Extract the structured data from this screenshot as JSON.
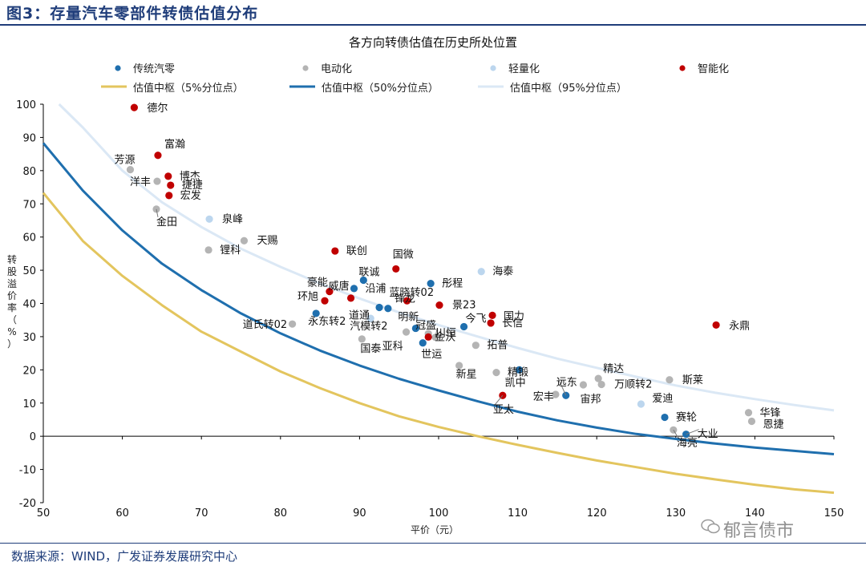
{
  "figure": {
    "title": "图3：存量汽车零部件转债估值分布",
    "source": "数据来源：WIND，广发证券发展研究中心",
    "watermark": "郁言债市"
  },
  "chart_data": {
    "type": "scatter",
    "title": "各方向转债估值在历史所处位置",
    "xlabel": "平价（元）",
    "ylabel": "转股溢价率（%）",
    "xlim": [
      50,
      150
    ],
    "ylim": [
      -20,
      100
    ],
    "xticks": [
      50,
      60,
      70,
      80,
      90,
      100,
      110,
      120,
      130,
      140,
      150
    ],
    "yticks": [
      -20,
      -10,
      0,
      10,
      20,
      30,
      40,
      50,
      60,
      70,
      80,
      90,
      100
    ],
    "grid": false,
    "legend_position": "top",
    "series": [
      {
        "name": "传统汽零",
        "color": "#1f6fae",
        "points": [
          {
            "label": "永东转2",
            "x": 84.5,
            "y": 37
          },
          {
            "label": "沿浦",
            "x": 89.3,
            "y": 44.5
          },
          {
            "label": "联诚",
            "x": 90.5,
            "y": 47
          },
          {
            "label": "道通",
            "x": 92.5,
            "y": 38.8
          },
          {
            "label": "锋龙",
            "x": 93.6,
            "y": 38.5
          },
          {
            "label": "明新",
            "x": 97.1,
            "y": 32.5
          },
          {
            "label": "世运",
            "x": 98,
            "y": 28.1
          },
          {
            "label": "彤程",
            "x": 99,
            "y": 46
          },
          {
            "label": "今飞",
            "x": 103.2,
            "y": 33
          },
          {
            "label": "凯中",
            "x": 110.2,
            "y": 20
          },
          {
            "label": "远东",
            "x": 116.1,
            "y": 12.3
          },
          {
            "label": "赛轮",
            "x": 128.6,
            "y": 5.7
          },
          {
            "label": "大业",
            "x": 131.3,
            "y": 0.6
          }
        ]
      },
      {
        "name": "电动化",
        "color": "#b4b4b4",
        "points": [
          {
            "label": "芳源",
            "x": 61,
            "y": 80.3
          },
          {
            "label": "洋丰",
            "x": 64.4,
            "y": 76.8
          },
          {
            "label": "金田",
            "x": 64.3,
            "y": 68.4
          },
          {
            "label": "锂科",
            "x": 70.9,
            "y": 56.1
          },
          {
            "label": "天赐",
            "x": 75.4,
            "y": 58.9
          },
          {
            "label": "道氏转02",
            "x": 81.5,
            "y": 33.8
          },
          {
            "label": "国泰",
            "x": 90.3,
            "y": 29.3
          },
          {
            "label": "亚科",
            "x": 95.9,
            "y": 31.4
          },
          {
            "label": "冠盛",
            "x": 98.7,
            "y": 30.9
          },
          {
            "label": "川恒",
            "x": 99.6,
            "y": 29.8
          },
          {
            "label": "新星",
            "x": 102.6,
            "y": 21.3
          },
          {
            "label": "拓普",
            "x": 104.7,
            "y": 27.4
          },
          {
            "label": "精锻",
            "x": 107.3,
            "y": 19.2
          },
          {
            "label": "宏丰",
            "x": 114.8,
            "y": 12.6
          },
          {
            "label": "宙邦",
            "x": 118.3,
            "y": 15.5
          },
          {
            "label": "精达",
            "x": 120.2,
            "y": 17.4
          },
          {
            "label": "万顺转2",
            "x": 120.6,
            "y": 15.6
          },
          {
            "label": "斯莱",
            "x": 129.2,
            "y": 17
          },
          {
            "label": "海亮",
            "x": 129.7,
            "y": 1.9
          },
          {
            "label": "华锋",
            "x": 139.2,
            "y": 7.1
          },
          {
            "label": "恩捷",
            "x": 139.6,
            "y": 4.5
          }
        ]
      },
      {
        "name": "轻量化",
        "color": "#bcd6ee",
        "points": [
          {
            "label": "泉峰",
            "x": 71,
            "y": 65.4
          },
          {
            "label": "汽模转2",
            "x": 91.4,
            "y": 35.5
          },
          {
            "label": "海泰",
            "x": 105.4,
            "y": 49.6
          },
          {
            "label": "爱迪",
            "x": 125.6,
            "y": 9.7
          }
        ]
      },
      {
        "name": "智能化",
        "color": "#c00000",
        "points": [
          {
            "label": "德尔",
            "x": 61.5,
            "y": 99
          },
          {
            "label": "富瀚",
            "x": 64.5,
            "y": 84.6
          },
          {
            "label": "博杰",
            "x": 65.8,
            "y": 78.3
          },
          {
            "label": "捷捷",
            "x": 66.1,
            "y": 75.6
          },
          {
            "label": "宏发",
            "x": 65.9,
            "y": 72.5
          },
          {
            "label": "联创",
            "x": 86.9,
            "y": 55.8
          },
          {
            "label": "豪能",
            "x": 86.2,
            "y": 43.6
          },
          {
            "label": "环旭",
            "x": 85.6,
            "y": 40.8
          },
          {
            "label": "威唐",
            "x": 88.9,
            "y": 41.6
          },
          {
            "label": "国微",
            "x": 94.6,
            "y": 50.4
          },
          {
            "label": "蓝晓转02",
            "x": 96,
            "y": 40.8
          },
          {
            "label": "景23",
            "x": 100.1,
            "y": 39.5
          },
          {
            "label": "国力",
            "x": 106.8,
            "y": 36.4
          },
          {
            "label": "长信",
            "x": 106.6,
            "y": 34.1
          },
          {
            "label": "金沃",
            "x": 98.7,
            "y": 29.9
          },
          {
            "label": "亚太",
            "x": 108.1,
            "y": 12.3
          },
          {
            "label": "永鼎",
            "x": 135.1,
            "y": 33.5
          }
        ]
      }
    ],
    "curves": [
      {
        "name": "估值中枢（5%分位点）",
        "color": "#e3c55e",
        "points": [
          [
            50,
            73.3
          ],
          [
            55,
            58.8
          ],
          [
            60,
            48.3
          ],
          [
            65,
            39.5
          ],
          [
            70,
            31.5
          ],
          [
            75,
            25.5
          ],
          [
            80,
            19.5
          ],
          [
            85,
            14.5
          ],
          [
            90,
            10
          ],
          [
            95,
            6
          ],
          [
            100,
            2.8
          ],
          [
            105,
            0
          ],
          [
            110,
            -2.6
          ],
          [
            115,
            -5
          ],
          [
            120,
            -7.3
          ],
          [
            125,
            -9.3
          ],
          [
            130,
            -11.3
          ],
          [
            135,
            -13
          ],
          [
            140,
            -14.6
          ],
          [
            145,
            -16
          ],
          [
            150,
            -17
          ]
        ]
      },
      {
        "name": "估值中枢（50%分位点）",
        "color": "#1f6fae",
        "points": [
          [
            50,
            88.3
          ],
          [
            55,
            74
          ],
          [
            60,
            62
          ],
          [
            65,
            52
          ],
          [
            70,
            44
          ],
          [
            75,
            37
          ],
          [
            80,
            31
          ],
          [
            85,
            25.8
          ],
          [
            90,
            21.3
          ],
          [
            95,
            17.3
          ],
          [
            100,
            13.8
          ],
          [
            105,
            10.5
          ],
          [
            110,
            7.4
          ],
          [
            115,
            4.8
          ],
          [
            120,
            2.6
          ],
          [
            125,
            0.7
          ],
          [
            130,
            -0.8
          ],
          [
            135,
            -2.2
          ],
          [
            140,
            -3.4
          ],
          [
            145,
            -4.4
          ],
          [
            150,
            -5.4
          ]
        ]
      },
      {
        "name": "估值中枢（95%分位点）",
        "color": "#dbe8f5",
        "points": [
          [
            52,
            100
          ],
          [
            55,
            93
          ],
          [
            60,
            80
          ],
          [
            65,
            70.5
          ],
          [
            70,
            63
          ],
          [
            75,
            56.5
          ],
          [
            80,
            51
          ],
          [
            85,
            46
          ],
          [
            90,
            41.5
          ],
          [
            95,
            37.3
          ],
          [
            100,
            33.5
          ],
          [
            105,
            30
          ],
          [
            110,
            26.6
          ],
          [
            115,
            23.4
          ],
          [
            120,
            20.6
          ],
          [
            125,
            17.9
          ],
          [
            130,
            15.3
          ],
          [
            135,
            13.1
          ],
          [
            140,
            11.2
          ],
          [
            145,
            9.4
          ],
          [
            150,
            7.8
          ]
        ]
      }
    ]
  }
}
